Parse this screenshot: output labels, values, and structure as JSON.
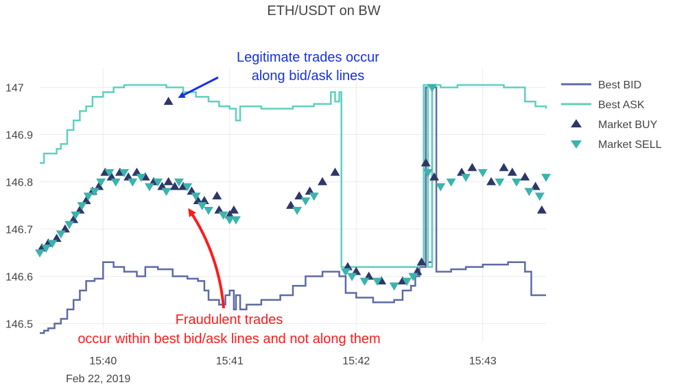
{
  "colors": {
    "bid": "#5d6aa5",
    "ask": "#5fd0bf",
    "buy": "#2e3766",
    "sell": "#3cb3ad",
    "legit_annotation": "#1530e6",
    "fraud_annotation": "#ff1a1a",
    "grid": "#ececec",
    "text": "#444444"
  },
  "chart_data": {
    "type": "line",
    "title": "ETH/USDT on BW",
    "xlabel": "",
    "ylabel": "",
    "date_label": "Feb 22, 2019",
    "xlim": [
      "15:39:30",
      "15:43:30"
    ],
    "ylim": [
      146.46,
      147.04
    ],
    "x_ticks": [
      "15:40",
      "15:41",
      "15:42",
      "15:43"
    ],
    "y_ticks": [
      146.5,
      146.6,
      146.7,
      146.8,
      146.9,
      147
    ],
    "y_tick_labels": [
      "146.5",
      "146.6",
      "146.7",
      "146.8",
      "146.9",
      "147"
    ],
    "grid": true,
    "legend_position": "top-right",
    "legend": [
      {
        "label": "Best BID",
        "symbol": "line",
        "color_key": "bid"
      },
      {
        "label": "Best ASK",
        "symbol": "line",
        "color_key": "ask"
      },
      {
        "label": "Market BUY",
        "symbol": "triangle-up",
        "color_key": "buy"
      },
      {
        "label": "Market SELL",
        "symbol": "triangle-down",
        "color_key": "sell"
      }
    ],
    "series": [
      {
        "name": "Best BID",
        "kind": "step",
        "points": [
          [
            "15:39:30",
            146.48
          ],
          [
            "15:39:32",
            146.485
          ],
          [
            "15:39:34",
            146.49
          ],
          [
            "15:39:37",
            146.5
          ],
          [
            "15:39:40",
            146.51
          ],
          [
            "15:39:43",
            146.53
          ],
          [
            "15:39:46",
            146.55
          ],
          [
            "15:39:49",
            146.57
          ],
          [
            "15:39:52",
            146.59
          ],
          [
            "15:39:56",
            146.595
          ],
          [
            "15:40:00",
            146.63
          ],
          [
            "15:40:05",
            146.62
          ],
          [
            "15:40:10",
            146.61
          ],
          [
            "15:40:16",
            146.6
          ],
          [
            "15:40:20",
            146.62
          ],
          [
            "15:40:26",
            146.615
          ],
          [
            "15:40:33",
            146.6
          ],
          [
            "15:40:40",
            146.595
          ],
          [
            "15:40:45",
            146.59
          ],
          [
            "15:40:48",
            146.57
          ],
          [
            "15:40:50",
            146.55
          ],
          [
            "15:40:55",
            146.54
          ],
          [
            "15:40:58",
            146.56
          ],
          [
            "15:41:00",
            146.57
          ],
          [
            "15:41:02",
            146.53
          ],
          [
            "15:41:03",
            146.56
          ],
          [
            "15:41:05",
            146.53
          ],
          [
            "15:41:08",
            146.54
          ],
          [
            "15:41:15",
            146.55
          ],
          [
            "15:41:24",
            146.56
          ],
          [
            "15:41:30",
            146.58
          ],
          [
            "15:41:36",
            146.6
          ],
          [
            "15:41:44",
            146.61
          ],
          [
            "15:41:52",
            146.6
          ],
          [
            "15:41:55",
            146.565
          ],
          [
            "15:42:00",
            146.555
          ],
          [
            "15:42:08",
            146.545
          ],
          [
            "15:42:18",
            146.55
          ],
          [
            "15:42:22",
            146.57
          ],
          [
            "15:42:26",
            146.58
          ],
          [
            "15:42:28",
            146.6
          ],
          [
            "15:42:30",
            146.62
          ],
          [
            "15:42:33",
            147.0
          ],
          [
            "15:42:34",
            146.63
          ],
          [
            "15:42:36",
            147.0
          ],
          [
            "15:42:38",
            146.61
          ],
          [
            "15:42:45",
            146.615
          ],
          [
            "15:42:52",
            146.62
          ],
          [
            "15:43:00",
            146.625
          ],
          [
            "15:43:12",
            146.63
          ],
          [
            "15:43:20",
            146.61
          ],
          [
            "15:43:23",
            146.56
          ],
          [
            "15:43:30",
            146.56
          ]
        ]
      },
      {
        "name": "Best ASK",
        "kind": "step",
        "points": [
          [
            "15:39:30",
            146.84
          ],
          [
            "15:39:32",
            146.86
          ],
          [
            "15:39:35",
            146.86
          ],
          [
            "15:39:38",
            146.87
          ],
          [
            "15:39:40",
            146.88
          ],
          [
            "15:39:43",
            146.91
          ],
          [
            "15:39:46",
            146.93
          ],
          [
            "15:39:49",
            146.95
          ],
          [
            "15:39:52",
            146.96
          ],
          [
            "15:39:55",
            146.98
          ],
          [
            "15:40:00",
            146.99
          ],
          [
            "15:40:05",
            147.0
          ],
          [
            "15:40:10",
            147.005
          ],
          [
            "15:40:30",
            147.0
          ],
          [
            "15:40:38",
            146.99
          ],
          [
            "15:40:44",
            146.98
          ],
          [
            "15:40:50",
            146.97
          ],
          [
            "15:40:55",
            146.96
          ],
          [
            "15:41:00",
            146.955
          ],
          [
            "15:41:03",
            146.93
          ],
          [
            "15:41:05",
            146.96
          ],
          [
            "15:41:15",
            146.955
          ],
          [
            "15:41:30",
            146.96
          ],
          [
            "15:41:40",
            146.965
          ],
          [
            "15:41:48",
            146.99
          ],
          [
            "15:41:50",
            146.97
          ],
          [
            "15:41:52",
            146.99
          ],
          [
            "15:41:53",
            146.62
          ],
          [
            "15:42:30",
            146.63
          ],
          [
            "15:42:32",
            147.005
          ],
          [
            "15:42:34",
            146.62
          ],
          [
            "15:42:36",
            147.005
          ],
          [
            "15:42:40",
            147.0
          ],
          [
            "15:42:48",
            147.005
          ],
          [
            "15:43:10",
            147.0
          ],
          [
            "15:43:20",
            146.97
          ],
          [
            "15:43:25",
            146.96
          ],
          [
            "15:43:30",
            146.955
          ]
        ]
      },
      {
        "name": "Market BUY",
        "kind": "triangle-up",
        "points": [
          [
            "15:39:31",
            146.66
          ],
          [
            "15:39:34",
            146.67
          ],
          [
            "15:39:38",
            146.68
          ],
          [
            "15:39:42",
            146.7
          ],
          [
            "15:39:46",
            146.72
          ],
          [
            "15:39:49",
            146.74
          ],
          [
            "15:39:52",
            146.76
          ],
          [
            "15:39:55",
            146.78
          ],
          [
            "15:39:58",
            146.79
          ],
          [
            "15:40:01",
            146.82
          ],
          [
            "15:40:04",
            146.81
          ],
          [
            "15:40:08",
            146.82
          ],
          [
            "15:40:12",
            146.81
          ],
          [
            "15:40:16",
            146.82
          ],
          [
            "15:40:20",
            146.81
          ],
          [
            "15:40:24",
            146.8
          ],
          [
            "15:40:28",
            146.79
          ],
          [
            "15:40:31",
            146.8
          ],
          [
            "15:40:34",
            146.79
          ],
          [
            "15:40:38",
            146.79
          ],
          [
            "15:40:42",
            146.78
          ],
          [
            "15:40:45",
            146.76
          ],
          [
            "15:40:48",
            146.76
          ],
          [
            "15:40:54",
            146.77
          ],
          [
            "15:40:55",
            146.74
          ],
          [
            "15:41:00",
            146.73
          ],
          [
            "15:41:02",
            146.74
          ],
          [
            "15:41:29",
            146.75
          ],
          [
            "15:41:33",
            146.77
          ],
          [
            "15:41:38",
            146.78
          ],
          [
            "15:41:44",
            146.8
          ],
          [
            "15:41:50",
            146.82
          ],
          [
            "15:41:56",
            146.62
          ],
          [
            "15:42:00",
            146.61
          ],
          [
            "15:42:06",
            146.6
          ],
          [
            "15:42:12",
            146.59
          ],
          [
            "15:42:22",
            146.59
          ],
          [
            "15:42:29",
            146.61
          ],
          [
            "15:42:31",
            146.63
          ],
          [
            "15:42:33",
            146.84
          ],
          [
            "15:42:37",
            146.81
          ],
          [
            "15:42:50",
            146.82
          ],
          [
            "15:42:55",
            146.83
          ],
          [
            "15:43:04",
            146.8
          ],
          [
            "15:43:10",
            146.83
          ],
          [
            "15:43:14",
            146.82
          ],
          [
            "15:43:20",
            146.81
          ],
          [
            "15:43:25",
            146.79
          ],
          [
            "15:43:28",
            146.74
          ],
          [
            "15:40:31",
            146.97
          ]
        ]
      },
      {
        "name": "Market SELL",
        "kind": "triangle-down",
        "points": [
          [
            "15:39:30",
            146.65
          ],
          [
            "15:39:33",
            146.66
          ],
          [
            "15:39:36",
            146.67
          ],
          [
            "15:39:40",
            146.69
          ],
          [
            "15:39:44",
            146.71
          ],
          [
            "15:39:47",
            146.73
          ],
          [
            "15:39:50",
            146.75
          ],
          [
            "15:39:53",
            146.77
          ],
          [
            "15:39:56",
            146.78
          ],
          [
            "15:39:59",
            146.8
          ],
          [
            "15:40:03",
            146.82
          ],
          [
            "15:40:06",
            146.8
          ],
          [
            "15:40:10",
            146.82
          ],
          [
            "15:40:14",
            146.8
          ],
          [
            "15:40:18",
            146.81
          ],
          [
            "15:40:22",
            146.79
          ],
          [
            "15:40:26",
            146.8
          ],
          [
            "15:40:30",
            146.78
          ],
          [
            "15:40:36",
            146.8
          ],
          [
            "15:40:40",
            146.79
          ],
          [
            "15:40:44",
            146.77
          ],
          [
            "15:40:47",
            146.75
          ],
          [
            "15:40:50",
            146.74
          ],
          [
            "15:40:57",
            146.73
          ],
          [
            "15:41:00",
            146.72
          ],
          [
            "15:41:03",
            146.72
          ],
          [
            "15:41:32",
            146.74
          ],
          [
            "15:41:36",
            146.76
          ],
          [
            "15:41:40",
            146.77
          ],
          [
            "15:41:55",
            146.61
          ],
          [
            "15:41:58",
            146.6
          ],
          [
            "15:42:04",
            146.59
          ],
          [
            "15:42:10",
            146.59
          ],
          [
            "15:42:18",
            146.58
          ],
          [
            "15:42:24",
            146.59
          ],
          [
            "15:42:27",
            146.6
          ],
          [
            "15:42:34",
            146.82
          ],
          [
            "15:42:36",
            147.0
          ],
          [
            "15:42:40",
            146.79
          ],
          [
            "15:42:45",
            146.8
          ],
          [
            "15:42:52",
            146.81
          ],
          [
            "15:43:00",
            146.82
          ],
          [
            "15:43:08",
            146.8
          ],
          [
            "15:43:16",
            146.8
          ],
          [
            "15:43:22",
            146.78
          ],
          [
            "15:43:27",
            146.77
          ],
          [
            "15:43:30",
            146.81
          ]
        ]
      }
    ],
    "annotations": [
      {
        "lines": [
          "Legitimate trades occur",
          "along bid/ask lines"
        ],
        "color_key": "legit_annotation",
        "points_to": [
          "15:40:31",
          146.97
        ]
      },
      {
        "lines": [
          "Fraudulent trades",
          "occur within best bid/ask lines and not along them"
        ],
        "color_key": "fraud_annotation",
        "points_to": [
          "15:40:45",
          146.74
        ]
      }
    ]
  }
}
